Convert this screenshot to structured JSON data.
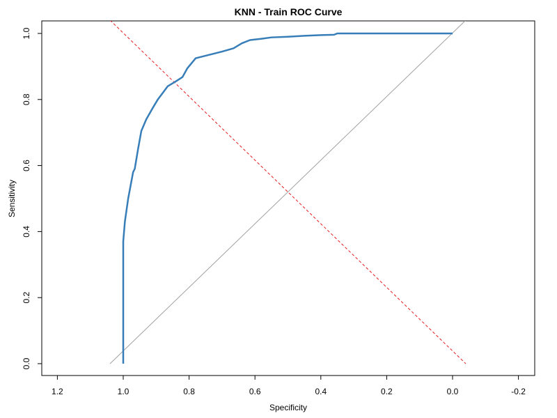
{
  "chart_data": {
    "type": "line",
    "title": "KNN - Train ROC Curve",
    "xlabel": "Specificity",
    "ylabel": "Sensitivity",
    "x_reversed": true,
    "xlim": [
      1.2,
      -0.2
    ],
    "ylim": [
      0.0,
      1.0
    ],
    "x_ticks": [
      1.2,
      1.0,
      0.8,
      0.6,
      0.4,
      0.2,
      0.0,
      -0.2
    ],
    "x_tick_labels": [
      "1.2",
      "1.0",
      "0.8",
      "0.6",
      "0.4",
      "0.2",
      "0.0",
      "-0.2"
    ],
    "y_ticks": [
      0.0,
      0.2,
      0.4,
      0.6,
      0.8,
      1.0
    ],
    "y_tick_labels": [
      "0.0",
      "0.2",
      "0.4",
      "0.6",
      "0.8",
      "1.0"
    ],
    "grid": false,
    "series": [
      {
        "role": "roc",
        "color": "#377eb8",
        "specificity": [
          1.0,
          1.0,
          0.995,
          0.985,
          0.97,
          0.965,
          0.955,
          0.945,
          0.93,
          0.91,
          0.895,
          0.88,
          0.865,
          0.84,
          0.82,
          0.805,
          0.78,
          0.74,
          0.7,
          0.665,
          0.64,
          0.615,
          0.58,
          0.55,
          0.5,
          0.45,
          0.4,
          0.36,
          0.35,
          0.3,
          0.2,
          0.1,
          0.0
        ],
        "sensitivity": [
          0.0,
          0.37,
          0.43,
          0.5,
          0.58,
          0.59,
          0.65,
          0.705,
          0.74,
          0.775,
          0.8,
          0.82,
          0.84,
          0.855,
          0.868,
          0.895,
          0.925,
          0.935,
          0.945,
          0.955,
          0.97,
          0.98,
          0.984,
          0.988,
          0.99,
          0.993,
          0.995,
          0.996,
          1.0,
          1.0,
          1.0,
          1.0,
          1.0
        ]
      }
    ],
    "reference_lines": [
      {
        "role": "diagonal",
        "color": "#a0a0a0",
        "style": "solid",
        "from": [
          1.04,
          0.0
        ],
        "to": [
          -0.04,
          1.04
        ]
      },
      {
        "role": "cutoff",
        "color": "#e41a1c",
        "style": "dashed",
        "from": [
          1.04,
          1.04
        ],
        "to": [
          -0.04,
          0.0
        ]
      }
    ]
  }
}
